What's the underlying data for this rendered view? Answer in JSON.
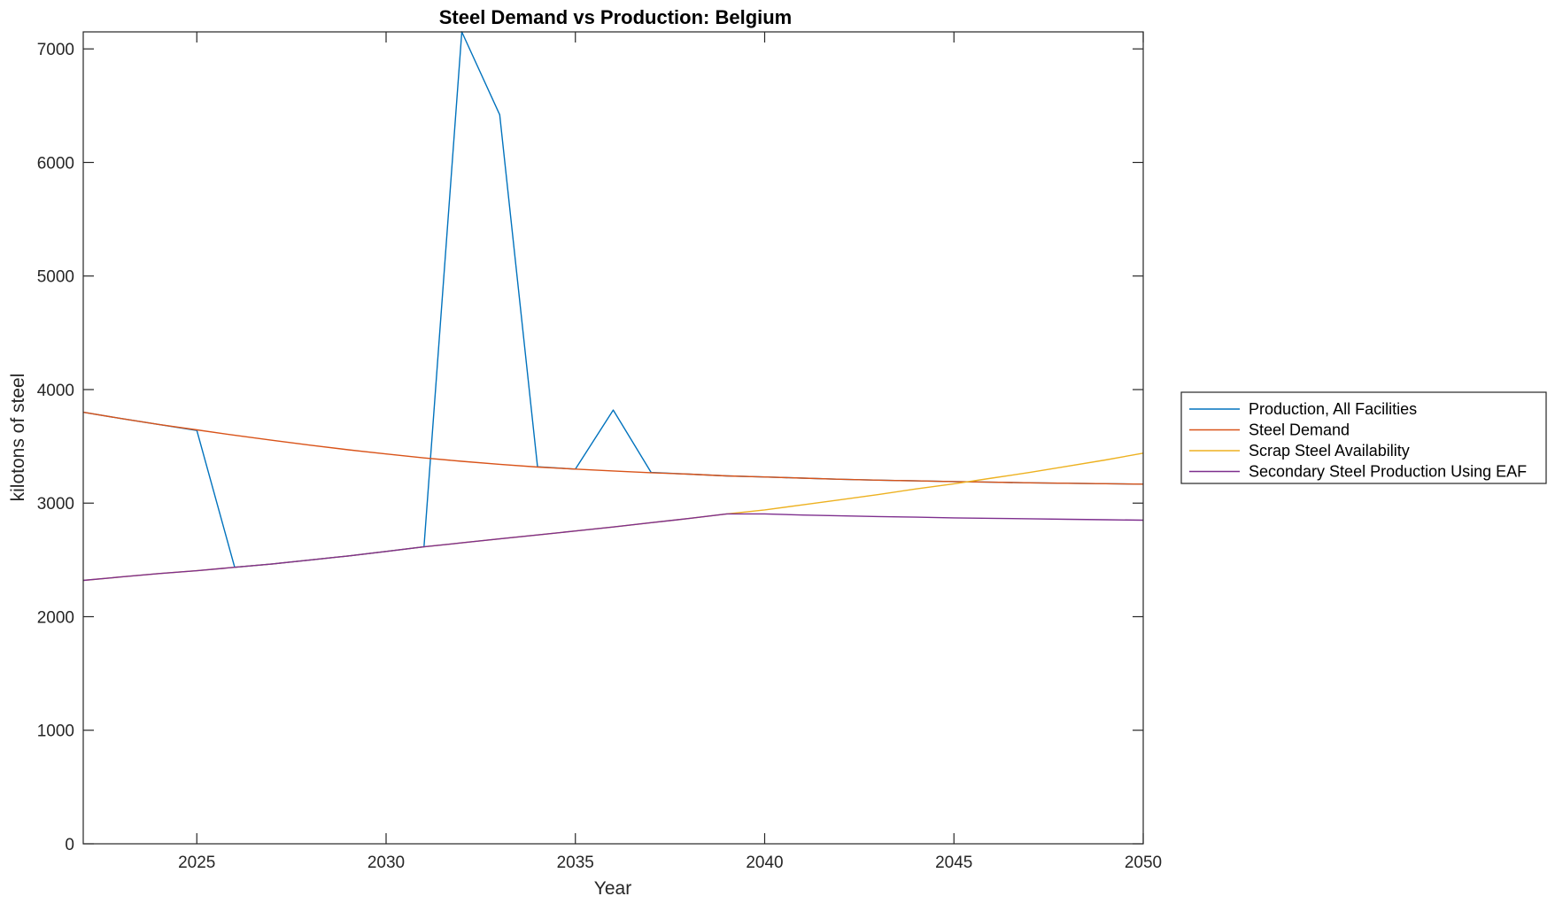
{
  "chart_data": {
    "type": "line",
    "title": "Steel Demand vs Production: Belgium",
    "xlabel": "Year",
    "ylabel": "kilotons of steel",
    "xlim": [
      2022,
      2050
    ],
    "ylim": [
      0,
      7150
    ],
    "xticks": [
      2025,
      2030,
      2035,
      2040,
      2045,
      2050
    ],
    "yticks": [
      0,
      1000,
      2000,
      3000,
      4000,
      5000,
      6000,
      7000
    ],
    "grid": false,
    "legend_position": "outside-right",
    "x": [
      2022,
      2023,
      2024,
      2025,
      2026,
      2027,
      2028,
      2029,
      2030,
      2031,
      2032,
      2033,
      2034,
      2035,
      2036,
      2037,
      2038,
      2039,
      2040,
      2041,
      2042,
      2043,
      2044,
      2045,
      2046,
      2047,
      2048,
      2049,
      2050
    ],
    "series": [
      {
        "name": "Production, All Facilities",
        "color": "#0072BD",
        "values": [
          3800,
          3745,
          3693,
          3640,
          2435,
          2465,
          2500,
          2535,
          2575,
          2615,
          7150,
          6420,
          3320,
          3300,
          3820,
          3270,
          3255,
          3240,
          3230,
          3220,
          3210,
          3202,
          3196,
          3190,
          3184,
          3179,
          3175,
          3171,
          3167
        ]
      },
      {
        "name": "Steel Demand",
        "color": "#D95319",
        "values": [
          3800,
          3745,
          3693,
          3645,
          3598,
          3553,
          3510,
          3470,
          3433,
          3398,
          3368,
          3342,
          3318,
          3300,
          3283,
          3268,
          3255,
          3240,
          3230,
          3220,
          3210,
          3202,
          3196,
          3190,
          3184,
          3179,
          3175,
          3171,
          3167
        ]
      },
      {
        "name": "Scrap Steel Availability",
        "color": "#EDB120",
        "values": [
          2320,
          2350,
          2380,
          2405,
          2435,
          2465,
          2500,
          2535,
          2575,
          2615,
          2650,
          2685,
          2720,
          2755,
          2790,
          2828,
          2865,
          2905,
          2940,
          2985,
          3030,
          3075,
          3125,
          3170,
          3220,
          3270,
          3325,
          3380,
          3440
        ]
      },
      {
        "name": "Secondary Steel Production Using EAF",
        "color": "#7E2F8E",
        "values": [
          2320,
          2350,
          2380,
          2405,
          2435,
          2465,
          2500,
          2535,
          2575,
          2615,
          2650,
          2685,
          2720,
          2755,
          2790,
          2828,
          2865,
          2905,
          2905,
          2895,
          2888,
          2882,
          2876,
          2870,
          2866,
          2862,
          2858,
          2854,
          2850
        ]
      }
    ]
  }
}
